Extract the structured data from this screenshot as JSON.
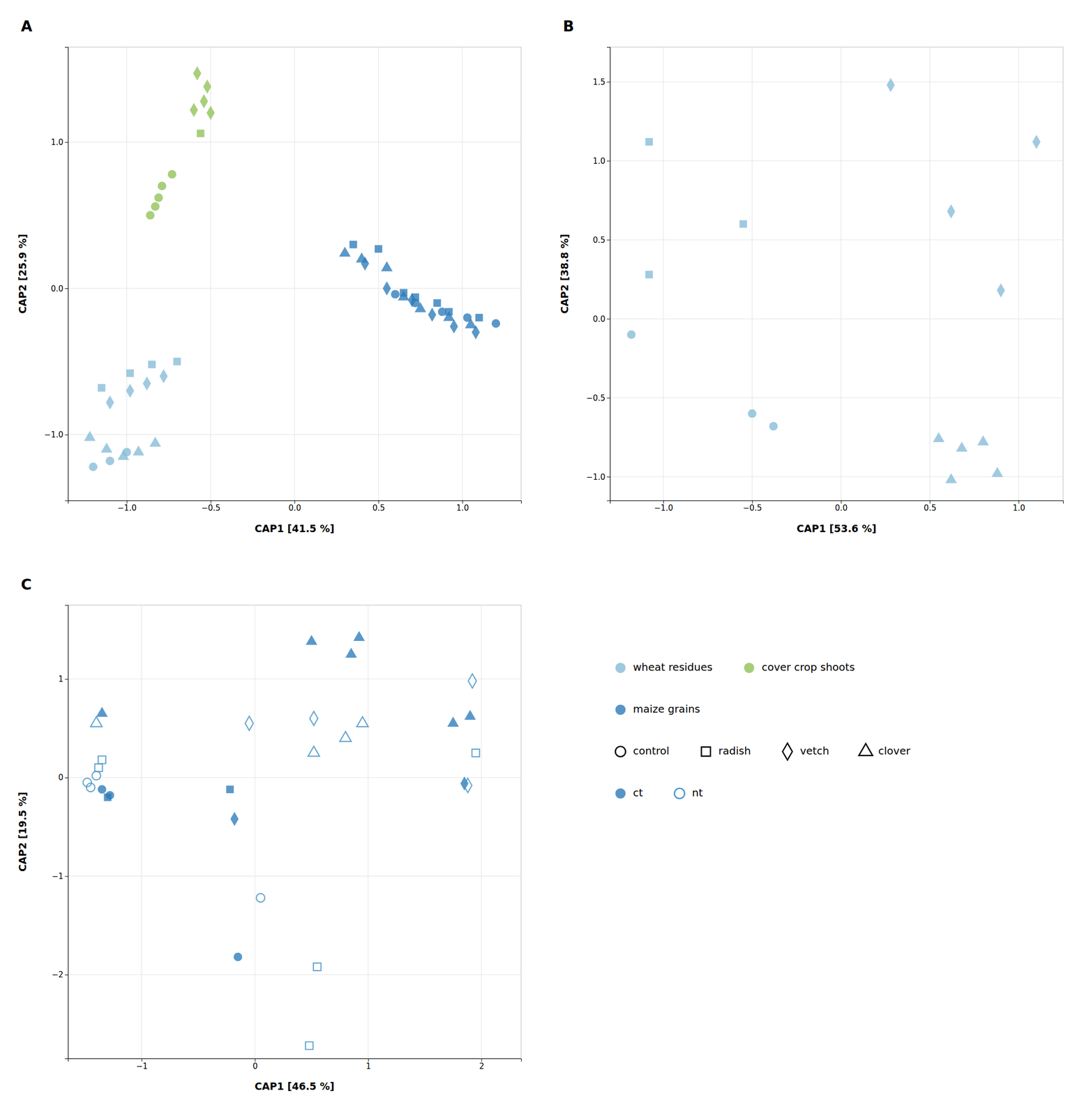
{
  "chart_data": [
    {
      "type": "scatter",
      "title": "A",
      "xlabel": "CAP1 [41.5 %]",
      "ylabel": "CAP2 [25.9 %]",
      "xlim": [
        -1.35,
        1.35
      ],
      "ylim": [
        -1.45,
        1.65
      ],
      "xticks": [
        {
          "value": -1.0,
          "label": "−1.0"
        },
        {
          "value": -0.5,
          "label": "−0.5"
        },
        {
          "value": 0.0,
          "label": "0.0"
        },
        0.5,
        {
          "value": 1.0,
          "label": "1.0"
        }
      ],
      "yticks": [
        {
          "value": -1.0,
          "label": "−1.0"
        },
        {
          "value": 0.0,
          "label": "0.0"
        },
        {
          "value": 1.0,
          "label": "1.0"
        }
      ],
      "grid": true,
      "series": [
        {
          "name": "cover crop shoots",
          "color": "#90c256",
          "marker": "diamond",
          "x": [
            -0.58,
            -0.52,
            -0.54,
            -0.6,
            -0.5
          ],
          "values": [
            1.47,
            1.38,
            1.28,
            1.22,
            1.2
          ]
        },
        {
          "name": "cover crop shoots",
          "color": "#90c256",
          "marker": "square",
          "x": [
            -0.56
          ],
          "values": [
            1.06
          ]
        },
        {
          "name": "cover crop shoots",
          "color": "#90c256",
          "marker": "circle",
          "x": [
            -0.73,
            -0.79,
            -0.81,
            -0.83,
            -0.86
          ],
          "values": [
            0.78,
            0.7,
            0.62,
            0.56,
            0.5
          ]
        },
        {
          "name": "maize grains",
          "color": "#2b7bba",
          "marker": "square",
          "x": [
            0.35,
            0.5,
            0.65,
            0.72,
            0.85,
            0.92,
            1.1
          ],
          "values": [
            0.3,
            0.27,
            -0.03,
            -0.06,
            -0.1,
            -0.16,
            -0.2
          ]
        },
        {
          "name": "maize grains",
          "color": "#2b7bba",
          "marker": "triangle",
          "x": [
            0.3,
            0.4,
            0.55,
            0.65,
            0.75,
            0.92,
            1.05
          ],
          "values": [
            0.24,
            0.2,
            0.14,
            -0.06,
            -0.14,
            -0.2,
            -0.25
          ]
        },
        {
          "name": "maize grains",
          "color": "#2b7bba",
          "marker": "diamond",
          "x": [
            0.42,
            0.55,
            0.7,
            0.82,
            0.95,
            1.08
          ],
          "values": [
            0.17,
            0.0,
            -0.08,
            -0.18,
            -0.26,
            -0.3
          ]
        },
        {
          "name": "maize grains",
          "color": "#2b7bba",
          "marker": "circle",
          "x": [
            0.6,
            0.72,
            0.88,
            1.03,
            1.2
          ],
          "values": [
            -0.04,
            -0.1,
            -0.16,
            -0.2,
            -0.24
          ]
        },
        {
          "name": "wheat residues",
          "color": "#85bbd7",
          "marker": "square",
          "x": [
            -1.15,
            -0.98,
            -0.85,
            -0.7
          ],
          "values": [
            -0.68,
            -0.58,
            -0.52,
            -0.5
          ]
        },
        {
          "name": "wheat residues",
          "color": "#85bbd7",
          "marker": "diamond",
          "x": [
            -1.1,
            -0.98,
            -0.88,
            -0.78
          ],
          "values": [
            -0.78,
            -0.7,
            -0.65,
            -0.6
          ]
        },
        {
          "name": "wheat residues",
          "color": "#85bbd7",
          "marker": "triangle",
          "x": [
            -1.22,
            -1.12,
            -1.02,
            -0.93,
            -0.83
          ],
          "values": [
            -1.02,
            -1.1,
            -1.15,
            -1.12,
            -1.06
          ]
        },
        {
          "name": "wheat residues",
          "color": "#85bbd7",
          "marker": "circle",
          "x": [
            -1.2,
            -1.1,
            -1.0
          ],
          "values": [
            -1.22,
            -1.18,
            -1.12
          ]
        }
      ]
    },
    {
      "type": "scatter",
      "title": "B",
      "xlabel": "CAP1 [53.6 %]",
      "ylabel": "CAP2 [38.8 %]",
      "xlim": [
        -1.3,
        1.25
      ],
      "ylim": [
        -1.15,
        1.72
      ],
      "xticks": [
        {
          "value": -1.0,
          "label": "−1.0"
        },
        {
          "value": -0.5,
          "label": "−0.5"
        },
        {
          "value": 0.0,
          "label": "0.0"
        },
        0.5,
        {
          "value": 1.0,
          "label": "1.0"
        }
      ],
      "yticks": [
        {
          "value": -1.0,
          "label": "−1.0"
        },
        {
          "value": -0.5,
          "label": "−0.5"
        },
        {
          "value": 0.0,
          "label": "0.0"
        },
        0.5,
        {
          "value": 1.0,
          "label": "1.0"
        },
        1.5
      ],
      "grid": true,
      "series": [
        {
          "name": "wheat residues",
          "color": "#85bbd7",
          "marker": "square",
          "x": [
            -1.08,
            -0.55,
            -1.08
          ],
          "values": [
            1.12,
            0.6,
            0.28
          ]
        },
        {
          "name": "wheat residues",
          "color": "#85bbd7",
          "marker": "diamond",
          "x": [
            0.28,
            0.62,
            0.9,
            1.1
          ],
          "values": [
            1.48,
            0.68,
            0.18,
            1.12
          ]
        },
        {
          "name": "wheat residues",
          "color": "#85bbd7",
          "marker": "circle",
          "x": [
            -1.18,
            -0.5,
            -0.38
          ],
          "values": [
            -0.1,
            -0.6,
            -0.68
          ]
        },
        {
          "name": "wheat residues",
          "color": "#85bbd7",
          "marker": "triangle",
          "x": [
            0.55,
            0.68,
            0.8,
            0.62,
            0.88
          ],
          "values": [
            -0.76,
            -0.82,
            -0.78,
            -1.02,
            -0.98
          ]
        }
      ]
    },
    {
      "type": "scatter",
      "title": "C",
      "xlabel": "CAP1 [46.5 %]",
      "ylabel": "CAP2 [19.5 %]",
      "xlim": [
        -1.65,
        2.35
      ],
      "ylim": [
        -2.85,
        1.75
      ],
      "xticks": [
        {
          "value": -1,
          "label": "−1"
        },
        0,
        1,
        2
      ],
      "yticks": [
        {
          "value": -2,
          "label": "−2"
        },
        {
          "value": -1,
          "label": "−1"
        },
        0,
        1
      ],
      "grid": true,
      "series": [
        {
          "name": "ct",
          "color": "#2b7bba",
          "marker": "circle",
          "x": [
            -1.35,
            -1.28,
            -0.15
          ],
          "values": [
            -0.12,
            -0.18,
            -1.82
          ]
        },
        {
          "name": "ct",
          "color": "#2b7bba",
          "marker": "square",
          "x": [
            -1.3,
            -0.22
          ],
          "values": [
            -0.2,
            -0.12
          ]
        },
        {
          "name": "ct",
          "color": "#2b7bba",
          "marker": "diamond",
          "x": [
            -0.18,
            1.85
          ],
          "values": [
            -0.42,
            -0.06
          ]
        },
        {
          "name": "ct",
          "color": "#2b7bba",
          "marker": "triangle",
          "x": [
            -1.35,
            0.5,
            0.85,
            0.92,
            1.75,
            1.9
          ],
          "values": [
            0.65,
            1.38,
            1.25,
            1.42,
            0.55,
            0.62
          ]
        },
        {
          "name": "nt",
          "color": "#4a96c8",
          "marker": "circle-open",
          "x": [
            -1.4,
            -1.48,
            -1.45,
            0.05
          ],
          "values": [
            0.02,
            -0.05,
            -0.1,
            -1.22
          ]
        },
        {
          "name": "nt",
          "color": "#4a96c8",
          "marker": "square-open",
          "x": [
            -1.38,
            -1.35,
            0.55,
            0.48,
            1.95
          ],
          "values": [
            0.1,
            0.18,
            -1.92,
            -2.72,
            0.25
          ]
        },
        {
          "name": "nt",
          "color": "#4a96c8",
          "marker": "diamond-open",
          "x": [
            -0.05,
            0.52,
            1.92,
            1.88
          ],
          "values": [
            0.55,
            0.6,
            0.98,
            -0.08
          ]
        },
        {
          "name": "nt",
          "color": "#4a96c8",
          "marker": "triangle-open",
          "x": [
            -1.4,
            0.52,
            0.8,
            0.95
          ],
          "values": [
            0.55,
            0.25,
            0.4,
            0.55
          ]
        }
      ]
    },
    {
      "type": "legend",
      "entries": [
        {
          "name": "wheat residues",
          "color": "#85bbd7",
          "marker": "circle"
        },
        {
          "name": "cover crop shoots",
          "color": "#90c256",
          "marker": "circle"
        },
        {
          "name": "maize grains",
          "color": "#2b7bba",
          "marker": "circle"
        },
        {
          "name": "control",
          "color": "#000000",
          "marker": "circle-open"
        },
        {
          "name": "radish",
          "color": "#000000",
          "marker": "square-open"
        },
        {
          "name": "vetch",
          "color": "#000000",
          "marker": "diamond-open"
        },
        {
          "name": "clover",
          "color": "#000000",
          "marker": "triangle-open"
        },
        {
          "name": "ct",
          "color": "#2b7bba",
          "marker": "circle"
        },
        {
          "name": "nt",
          "color": "#4a96c8",
          "marker": "circle-open"
        }
      ]
    }
  ]
}
